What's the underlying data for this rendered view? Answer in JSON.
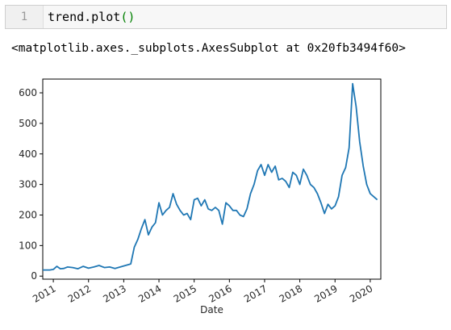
{
  "input_cell": {
    "line_number": "1",
    "code_object": "trend.plot",
    "code_parens": "()"
  },
  "output": {
    "repr_text": "<matplotlib.axes._subplots.AxesSubplot at 0x20fb3494f60>"
  },
  "chart_data": {
    "type": "line",
    "xlabel": "Date",
    "ylabel": "",
    "title": "",
    "xlim": [
      2010.7,
      2020.3
    ],
    "ylim": [
      -10,
      645
    ],
    "y_ticks": [
      0,
      100,
      200,
      300,
      400,
      500,
      600
    ],
    "x_ticks": [
      "2011",
      "2012",
      "2013",
      "2014",
      "2015",
      "2016",
      "2017",
      "2018",
      "2019",
      "2020"
    ],
    "grid": false,
    "legend": "none",
    "series": [
      {
        "color": "#1f77b4",
        "x": [
          2010.7,
          2010.9,
          2011.0,
          2011.1,
          2011.2,
          2011.3,
          2011.4,
          2011.55,
          2011.7,
          2011.85,
          2012.0,
          2012.15,
          2012.3,
          2012.45,
          2012.6,
          2012.75,
          2012.9,
          2013.05,
          2013.2,
          2013.3,
          2013.4,
          2013.5,
          2013.6,
          2013.7,
          2013.8,
          2013.9,
          2014.0,
          2014.1,
          2014.2,
          2014.3,
          2014.4,
          2014.5,
          2014.6,
          2014.7,
          2014.8,
          2014.9,
          2015.0,
          2015.1,
          2015.2,
          2015.3,
          2015.4,
          2015.5,
          2015.6,
          2015.7,
          2015.8,
          2015.9,
          2016.0,
          2016.1,
          2016.2,
          2016.3,
          2016.4,
          2016.5,
          2016.6,
          2016.7,
          2016.8,
          2016.9,
          2017.0,
          2017.1,
          2017.2,
          2017.3,
          2017.4,
          2017.5,
          2017.6,
          2017.7,
          2017.8,
          2017.9,
          2018.0,
          2018.1,
          2018.2,
          2018.3,
          2018.4,
          2018.5,
          2018.6,
          2018.7,
          2018.8,
          2018.9,
          2019.0,
          2019.1,
          2019.2,
          2019.3,
          2019.4,
          2019.5,
          2019.6,
          2019.7,
          2019.8,
          2019.9,
          2020.0,
          2020.1,
          2020.2
        ],
        "y": [
          20,
          20,
          22,
          32,
          24,
          25,
          30,
          28,
          24,
          32,
          26,
          30,
          35,
          28,
          30,
          25,
          30,
          35,
          40,
          95,
          120,
          155,
          185,
          135,
          160,
          175,
          240,
          200,
          215,
          225,
          270,
          235,
          215,
          200,
          205,
          185,
          250,
          255,
          230,
          250,
          220,
          215,
          225,
          215,
          170,
          240,
          230,
          215,
          215,
          200,
          195,
          220,
          270,
          300,
          345,
          365,
          330,
          365,
          340,
          360,
          315,
          320,
          310,
          290,
          340,
          330,
          300,
          350,
          330,
          300,
          290,
          270,
          240,
          205,
          235,
          220,
          230,
          260,
          330,
          355,
          420,
          630,
          555,
          440,
          360,
          300,
          270,
          260,
          250
        ]
      }
    ]
  }
}
